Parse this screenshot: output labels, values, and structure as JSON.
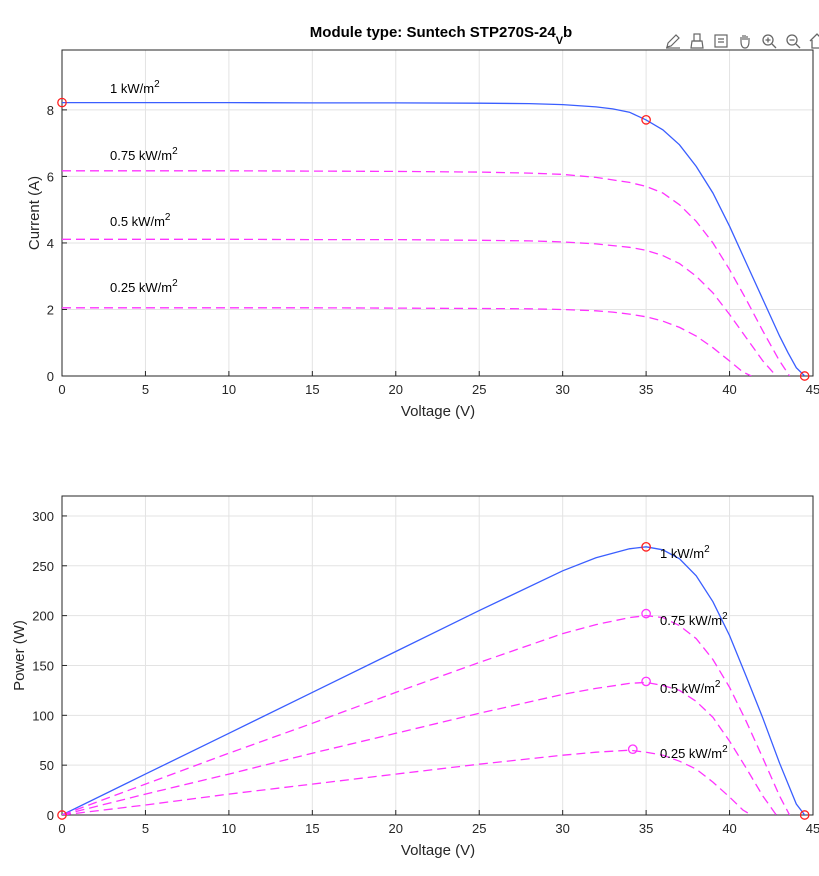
{
  "figure": {
    "title_main": "Module type: Suntech STP270S-24",
    "title_sub": "V",
    "title_tail": "b"
  },
  "toolbar": {
    "icons": [
      "edit-plot-icon",
      "brush-icon",
      "data-tips-icon",
      "pan-icon",
      "zoom-in-icon",
      "zoom-out-icon",
      "home-icon"
    ]
  },
  "colors": {
    "full_irradiance": "#3a5eff",
    "partial_irradiance": "#ff33ff",
    "marker_full": "#ff2020",
    "marker_partial": "#ff33ff",
    "grid": "#e3e3e3",
    "axis": "#262626"
  },
  "chart_data": [
    {
      "type": "line",
      "xlabel": "Voltage (V)",
      "ylabel": "Current (A)",
      "xlim": [
        0,
        45
      ],
      "ylim": [
        0,
        9.8
      ],
      "xticks": [
        0,
        5,
        10,
        15,
        20,
        25,
        30,
        35,
        40,
        45
      ],
      "yticks": [
        0,
        2,
        4,
        6,
        8
      ],
      "xtick_labels": [
        "0",
        "5",
        "10",
        "15",
        "20",
        "25",
        "30",
        "35",
        "40",
        "45"
      ],
      "ytick_labels": [
        "0",
        "2",
        "4",
        "6",
        "8"
      ],
      "grid": true,
      "series": [
        {
          "name": "1 kW/m2",
          "label": "1 kW/m",
          "sup": "2",
          "style": "solid",
          "x": [
            0,
            5,
            10,
            15,
            20,
            25,
            28,
            30,
            32,
            33,
            34,
            35,
            36,
            37,
            38,
            39,
            40,
            41,
            42,
            43,
            43.5,
            44,
            44.5
          ],
          "y": [
            8.22,
            8.22,
            8.22,
            8.21,
            8.21,
            8.2,
            8.19,
            8.16,
            8.09,
            8.03,
            7.93,
            7.7,
            7.4,
            6.95,
            6.3,
            5.5,
            4.5,
            3.4,
            2.3,
            1.2,
            0.7,
            0.25,
            0
          ]
        },
        {
          "name": "0.75 kW/m2",
          "label": "0.75 kW/m",
          "sup": "2",
          "style": "dashed",
          "x": [
            0,
            5,
            10,
            15,
            20,
            25,
            28,
            30,
            32,
            34,
            35,
            36,
            37,
            38,
            39,
            40,
            41,
            42,
            43,
            43.6
          ],
          "y": [
            6.17,
            6.17,
            6.17,
            6.16,
            6.15,
            6.13,
            6.1,
            6.06,
            5.97,
            5.82,
            5.7,
            5.5,
            5.15,
            4.65,
            4.0,
            3.2,
            2.3,
            1.35,
            0.45,
            0
          ]
        },
        {
          "name": "0.5 kW/m2",
          "label": "0.5 kW/m",
          "sup": "2",
          "style": "dashed",
          "x": [
            0,
            5,
            10,
            15,
            20,
            25,
            28,
            30,
            32,
            34,
            35,
            36,
            37,
            38,
            39,
            40,
            41,
            42,
            42.8
          ],
          "y": [
            4.11,
            4.11,
            4.11,
            4.1,
            4.1,
            4.08,
            4.06,
            4.03,
            3.97,
            3.87,
            3.78,
            3.62,
            3.38,
            3.0,
            2.5,
            1.85,
            1.15,
            0.45,
            0
          ]
        },
        {
          "name": "0.25 kW/m2",
          "label": "0.25 kW/m",
          "sup": "2",
          "style": "dashed",
          "x": [
            0,
            5,
            10,
            15,
            20,
            25,
            28,
            30,
            32,
            33,
            34,
            35,
            36,
            37,
            38,
            39,
            40,
            40.8,
            41.3
          ],
          "y": [
            2.05,
            2.05,
            2.05,
            2.05,
            2.04,
            2.03,
            2.02,
            2.0,
            1.96,
            1.92,
            1.86,
            1.78,
            1.65,
            1.46,
            1.2,
            0.85,
            0.45,
            0.12,
            0
          ]
        }
      ],
      "markers": [
        {
          "x": 0,
          "y": 8.22,
          "series": "1 kW/m2"
        },
        {
          "x": 35,
          "y": 7.7,
          "series": "1 kW/m2"
        },
        {
          "x": 44.5,
          "y": 0,
          "series": "1 kW/m2"
        }
      ]
    },
    {
      "type": "line",
      "xlabel": "Voltage (V)",
      "ylabel": "Power (W)",
      "xlim": [
        0,
        45
      ],
      "ylim": [
        0,
        320
      ],
      "xticks": [
        0,
        5,
        10,
        15,
        20,
        25,
        30,
        35,
        40,
        45
      ],
      "yticks": [
        0,
        50,
        100,
        150,
        200,
        250,
        300
      ],
      "xtick_labels": [
        "0",
        "5",
        "10",
        "15",
        "20",
        "25",
        "30",
        "35",
        "40",
        "45"
      ],
      "ytick_labels": [
        "0",
        "50",
        "100",
        "150",
        "200",
        "250",
        "300"
      ],
      "grid": true,
      "series": [
        {
          "name": "1 kW/m2",
          "label": "1 kW/m",
          "sup": "2",
          "style": "solid",
          "x": [
            0,
            5,
            10,
            15,
            20,
            25,
            30,
            32,
            34,
            35,
            36,
            37,
            38,
            39,
            40,
            41,
            42,
            43,
            44,
            44.5
          ],
          "y": [
            0,
            41,
            82,
            123,
            164,
            205,
            245,
            258,
            267,
            269,
            266,
            257,
            240,
            214,
            180,
            139,
            97,
            52,
            11,
            0
          ]
        },
        {
          "name": "0.75 kW/m2",
          "label": "0.75 kW/m",
          "sup": "2",
          "style": "dashed",
          "x": [
            0,
            5,
            10,
            15,
            20,
            25,
            30,
            32,
            34,
            35,
            36,
            37,
            38,
            39,
            40,
            41,
            42,
            43,
            43.6
          ],
          "y": [
            0,
            31,
            62,
            92,
            123,
            153,
            182,
            191,
            198,
            200,
            198,
            190,
            177,
            156,
            128,
            94,
            57,
            19,
            0
          ]
        },
        {
          "name": "0.5 kW/m2",
          "label": "0.5 kW/m",
          "sup": "2",
          "style": "dashed",
          "x": [
            0,
            5,
            10,
            15,
            20,
            25,
            30,
            32,
            34,
            35,
            36,
            37,
            38,
            39,
            40,
            41,
            42,
            42.8
          ],
          "y": [
            0,
            21,
            41,
            62,
            82,
            102,
            121,
            127,
            132,
            133,
            130,
            125,
            114,
            98,
            74,
            47,
            19,
            0
          ]
        },
        {
          "name": "0.25 kW/m2",
          "label": "0.25 kW/m",
          "sup": "2",
          "style": "dashed",
          "x": [
            0,
            5,
            10,
            15,
            20,
            25,
            30,
            32,
            33,
            34,
            35,
            36,
            37,
            38,
            39,
            40,
            40.8,
            41.3
          ],
          "y": [
            0,
            10,
            21,
            31,
            41,
            51,
            60,
            63,
            64,
            65,
            63,
            60,
            54,
            46,
            33,
            18,
            5,
            0
          ]
        }
      ],
      "markers": [
        {
          "x": 0,
          "y": 0,
          "series": "1 kW/m2"
        },
        {
          "x": 35,
          "y": 269,
          "series": "1 kW/m2"
        },
        {
          "x": 44.5,
          "y": 0,
          "series": "1 kW/m2"
        },
        {
          "x": 35,
          "y": 202,
          "series": "0.75 kW/m2"
        },
        {
          "x": 35,
          "y": 134,
          "series": "0.5 kW/m2"
        },
        {
          "x": 34.2,
          "y": 66,
          "series": "0.25 kW/m2"
        }
      ]
    }
  ]
}
